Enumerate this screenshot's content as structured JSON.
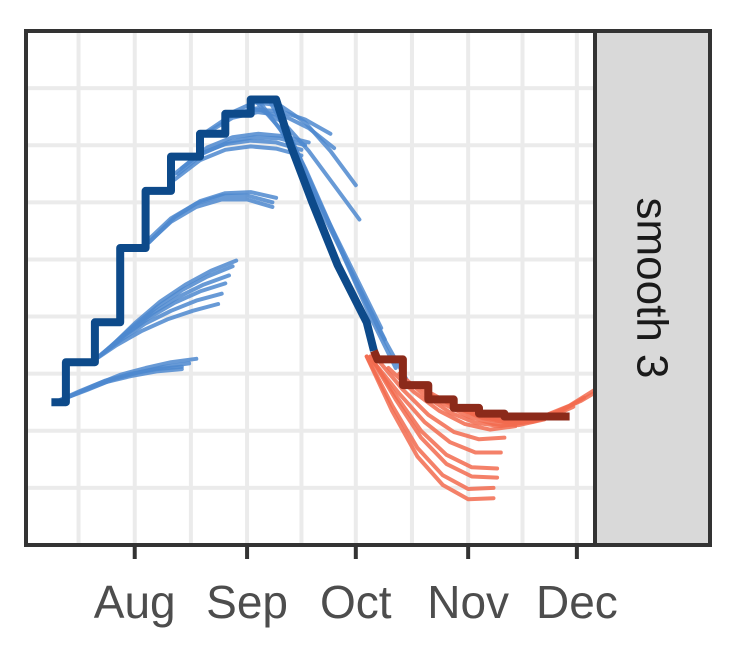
{
  "chart_data": {
    "type": "line",
    "title": "",
    "xlabel": "",
    "ylabel": "",
    "facet_label": "smooth 3",
    "x_ticks": [
      "Aug",
      "Sep",
      "Oct",
      "Nov",
      "Dec"
    ],
    "x_tick_dates": [
      "2023-08-01",
      "2023-09-01",
      "2023-10-01",
      "2023-11-01",
      "2023-12-01"
    ],
    "xlim": [
      "2023-07-02",
      "2023-12-06"
    ],
    "ylim": [
      -1,
      8
    ],
    "grid": true,
    "legend": "none",
    "colors": {
      "observed_rise": "#0d4a8a",
      "observed_fall": "#8c2a1a",
      "projections_rise": "#4d88cf",
      "projections_fall": "#f26b4f",
      "grid": "#ebebeb",
      "strip_background": "#d9d9d9",
      "border": "#333333"
    },
    "observed": [
      {
        "date": "2023-07-09",
        "value": 1.5
      },
      {
        "date": "2023-07-13",
        "value": 1.5
      },
      {
        "date": "2023-07-13",
        "value": 2.2
      },
      {
        "date": "2023-07-21",
        "value": 2.2
      },
      {
        "date": "2023-07-21",
        "value": 2.9
      },
      {
        "date": "2023-07-28",
        "value": 2.9
      },
      {
        "date": "2023-07-28",
        "value": 4.2
      },
      {
        "date": "2023-08-04",
        "value": 4.2
      },
      {
        "date": "2023-08-04",
        "value": 5.2
      },
      {
        "date": "2023-08-11",
        "value": 5.2
      },
      {
        "date": "2023-08-11",
        "value": 5.8
      },
      {
        "date": "2023-08-19",
        "value": 5.8
      },
      {
        "date": "2023-08-19",
        "value": 6.2
      },
      {
        "date": "2023-08-26",
        "value": 6.2
      },
      {
        "date": "2023-08-26",
        "value": 6.55
      },
      {
        "date": "2023-09-02",
        "value": 6.55
      },
      {
        "date": "2023-09-02",
        "value": 6.8
      },
      {
        "date": "2023-09-09",
        "value": 6.8
      },
      {
        "date": "2023-09-13",
        "value": 6.0
      },
      {
        "date": "2023-09-19",
        "value": 5.0
      },
      {
        "date": "2023-09-26",
        "value": 3.9
      },
      {
        "date": "2023-10-04",
        "value": 2.9
      },
      {
        "date": "2023-10-06",
        "value": 2.4
      },
      {
        "date": "2023-10-07",
        "value": 2.25
      },
      {
        "date": "2023-10-14",
        "value": 2.25
      },
      {
        "date": "2023-10-14",
        "value": 1.8
      },
      {
        "date": "2023-10-21",
        "value": 1.8
      },
      {
        "date": "2023-10-21",
        "value": 1.55
      },
      {
        "date": "2023-10-28",
        "value": 1.55
      },
      {
        "date": "2023-10-28",
        "value": 1.4
      },
      {
        "date": "2023-11-04",
        "value": 1.4
      },
      {
        "date": "2023-11-04",
        "value": 1.3
      },
      {
        "date": "2023-11-11",
        "value": 1.3
      },
      {
        "date": "2023-11-11",
        "value": 1.25
      },
      {
        "date": "2023-11-29",
        "value": 1.25
      }
    ],
    "projections_rise": [
      {
        "start": "2023-07-10",
        "values": [
          1.5,
          1.7,
          1.88,
          2.0,
          2.08,
          2.12
        ]
      },
      {
        "start": "2023-07-10",
        "values": [
          1.5,
          1.68,
          1.85,
          1.96,
          2.04,
          2.08
        ]
      },
      {
        "start": "2023-07-12",
        "values": [
          1.55,
          1.72,
          1.9,
          2.02,
          2.12,
          2.18
        ]
      },
      {
        "start": "2023-07-14",
        "values": [
          1.6,
          1.8,
          1.98,
          2.1,
          2.2,
          2.26
        ]
      },
      {
        "start": "2023-07-20",
        "values": [
          2.2,
          2.5,
          2.75,
          2.95,
          3.1,
          3.22
        ]
      },
      {
        "start": "2023-07-21",
        "values": [
          2.25,
          2.58,
          2.88,
          3.1,
          3.28,
          3.4
        ]
      },
      {
        "start": "2023-07-22",
        "values": [
          2.3,
          2.66,
          2.98,
          3.24,
          3.44,
          3.58
        ]
      },
      {
        "start": "2023-07-23",
        "values": [
          2.35,
          2.72,
          3.06,
          3.34,
          3.56,
          3.72
        ]
      },
      {
        "start": "2023-07-24",
        "values": [
          2.4,
          2.8,
          3.16,
          3.46,
          3.7,
          3.88
        ]
      },
      {
        "start": "2023-07-25",
        "values": [
          2.45,
          2.88,
          3.26,
          3.56,
          3.8,
          3.98
        ]
      },
      {
        "start": "2023-08-04",
        "values": [
          4.3,
          4.72,
          4.98,
          5.12,
          5.12,
          5.0
        ]
      },
      {
        "start": "2023-08-04",
        "values": [
          4.25,
          4.66,
          4.92,
          5.05,
          5.05,
          4.92
        ]
      },
      {
        "start": "2023-08-05",
        "values": [
          4.3,
          4.74,
          5.02,
          5.16,
          5.18,
          5.08
        ]
      },
      {
        "start": "2023-08-12",
        "values": [
          5.5,
          5.85,
          6.02,
          6.08,
          6.05,
          5.92
        ]
      },
      {
        "start": "2023-08-12",
        "values": [
          5.4,
          5.74,
          5.92,
          5.98,
          5.94,
          5.82
        ]
      },
      {
        "start": "2023-08-13",
        "values": [
          5.5,
          5.86,
          6.06,
          6.14,
          6.12,
          6.0
        ]
      },
      {
        "start": "2023-08-14",
        "values": [
          5.6,
          5.96,
          6.14,
          6.2,
          6.16,
          6.05
        ]
      },
      {
        "start": "2023-08-20",
        "values": [
          6.2,
          6.5,
          6.62,
          6.6,
          6.45,
          6.2
        ]
      },
      {
        "start": "2023-08-21",
        "values": [
          6.22,
          6.48,
          6.58,
          6.52,
          6.3,
          5.95
        ]
      },
      {
        "start": "2023-08-27",
        "values": [
          6.55,
          6.75,
          6.7,
          6.4,
          5.9,
          5.3
        ]
      },
      {
        "start": "2023-08-28",
        "values": [
          6.55,
          6.65,
          6.4,
          5.9,
          5.3,
          4.7
        ]
      },
      {
        "start": "2023-09-03",
        "values": [
          6.8,
          6.3,
          5.5,
          4.6,
          3.7,
          2.8
        ]
      },
      {
        "start": "2023-09-04",
        "values": [
          6.8,
          6.2,
          5.3,
          4.4,
          3.5,
          2.6
        ]
      },
      {
        "start": "2023-09-07",
        "values": [
          6.8,
          6.0,
          5.0,
          4.0,
          3.0,
          2.1
        ]
      },
      {
        "start": "2023-09-10",
        "values": [
          6.5,
          5.6,
          4.6,
          3.6,
          2.7,
          1.9
        ]
      }
    ],
    "projections_fall": [
      {
        "start": "2023-10-04",
        "values": [
          2.3,
          1.35,
          0.55,
          0.05,
          -0.2,
          -0.18
        ]
      },
      {
        "start": "2023-10-04",
        "values": [
          2.3,
          1.45,
          0.7,
          0.22,
          -0.02,
          0.0
        ]
      },
      {
        "start": "2023-10-05",
        "values": [
          2.3,
          1.55,
          0.88,
          0.42,
          0.2,
          0.18
        ]
      },
      {
        "start": "2023-10-05",
        "values": [
          2.3,
          1.62,
          1.0,
          0.58,
          0.36,
          0.34
        ]
      },
      {
        "start": "2023-10-06",
        "values": [
          2.2,
          1.65,
          1.15,
          0.8,
          0.62,
          0.62
        ]
      },
      {
        "start": "2023-10-07",
        "values": [
          2.25,
          1.72,
          1.28,
          0.98,
          0.85,
          0.88
        ]
      },
      {
        "start": "2023-10-10",
        "values": [
          2.1,
          1.68,
          1.35,
          1.12,
          1.02,
          1.08
        ]
      },
      {
        "start": "2023-10-13",
        "values": [
          2.0,
          1.62,
          1.32,
          1.14,
          1.08,
          1.15
        ]
      },
      {
        "start": "2023-10-18",
        "values": [
          1.8,
          1.48,
          1.25,
          1.12,
          1.1,
          1.2
        ]
      },
      {
        "start": "2023-10-22",
        "values": [
          1.65,
          1.4,
          1.22,
          1.14,
          1.16,
          1.3
        ]
      },
      {
        "start": "2023-10-26",
        "values": [
          1.5,
          1.3,
          1.18,
          1.14,
          1.22,
          1.42
        ]
      },
      {
        "start": "2023-10-29",
        "values": [
          1.4,
          1.24,
          1.16,
          1.18,
          1.32,
          1.58
        ]
      },
      {
        "start": "2023-11-01",
        "values": [
          1.35,
          1.22,
          1.18,
          1.26,
          1.44,
          1.72
        ]
      },
      {
        "start": "2023-11-04",
        "values": [
          1.3,
          1.2,
          1.2,
          1.32,
          1.52,
          1.78
        ]
      }
    ]
  }
}
